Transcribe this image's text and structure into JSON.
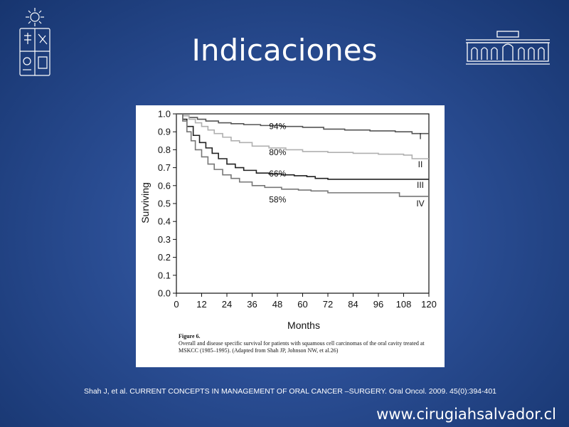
{
  "slide": {
    "title": "Indicaciones",
    "citation": "Shah J, et al. CURRENT CONCEPTS IN MANAGEMENT OF ORAL CANCER –SURGERY. Oral Oncol. 2009. 45(0):394-401",
    "website": "www.cirugiahsalvador.cl"
  },
  "figure": {
    "label": "Figure 6.",
    "caption": "Overall and disease specific survival for patients with squamous cell carcinomas of the oral cavity treated at MSKCC (1985–1995). (Adapted from Shah JP, Johnson NW, et al.26)"
  },
  "colors": {
    "background": "#2a4d93",
    "stage_I": "#555555",
    "stage_II": "#b0b0b0",
    "stage_III": "#222222",
    "stage_IV": "#777777"
  },
  "chart_data": {
    "type": "line",
    "title": "",
    "xlabel": "Months",
    "ylabel": "Surviving",
    "xlim": [
      0,
      120
    ],
    "ylim": [
      0,
      1.0
    ],
    "xticks": [
      "0",
      "12",
      "24",
      "36",
      "48",
      "60",
      "72",
      "84",
      "96",
      "108",
      "120"
    ],
    "yticks": [
      "0.0",
      "0.1",
      "0.2",
      "0.3",
      "0.4",
      "0.5",
      "0.6",
      "0.7",
      "0.8",
      "0.9",
      "1.0"
    ],
    "grid": false,
    "series": [
      {
        "name": "I",
        "annotation": "94%",
        "x": [
          0,
          3,
          6,
          10,
          14,
          20,
          26,
          32,
          40,
          50,
          60,
          70,
          80,
          92,
          104,
          112,
          120
        ],
        "y": [
          1.0,
          0.99,
          0.98,
          0.97,
          0.96,
          0.95,
          0.945,
          0.94,
          0.935,
          0.93,
          0.925,
          0.915,
          0.91,
          0.905,
          0.9,
          0.89,
          0.89
        ]
      },
      {
        "name": "II",
        "annotation": "80%",
        "x": [
          0,
          3,
          6,
          9,
          12,
          15,
          18,
          22,
          26,
          30,
          36,
          44,
          52,
          60,
          72,
          84,
          96,
          108,
          112,
          120
        ],
        "y": [
          1.0,
          0.99,
          0.97,
          0.95,
          0.93,
          0.91,
          0.89,
          0.87,
          0.85,
          0.84,
          0.82,
          0.81,
          0.8,
          0.79,
          0.785,
          0.78,
          0.775,
          0.77,
          0.75,
          0.75
        ]
      },
      {
        "name": "III",
        "annotation": "66%",
        "x": [
          0,
          3,
          5,
          8,
          11,
          14,
          17,
          20,
          24,
          28,
          32,
          38,
          44,
          50,
          56,
          62,
          66,
          72,
          84,
          96,
          108,
          120
        ],
        "y": [
          1.0,
          0.97,
          0.93,
          0.88,
          0.84,
          0.81,
          0.78,
          0.75,
          0.72,
          0.7,
          0.685,
          0.67,
          0.665,
          0.66,
          0.655,
          0.65,
          0.64,
          0.635,
          0.635,
          0.635,
          0.635,
          0.635
        ]
      },
      {
        "name": "IV",
        "annotation": "58%",
        "x": [
          0,
          3,
          5,
          7,
          9,
          12,
          15,
          18,
          22,
          26,
          30,
          36,
          42,
          50,
          58,
          64,
          72,
          84,
          96,
          106,
          120
        ],
        "y": [
          1.0,
          0.96,
          0.9,
          0.85,
          0.8,
          0.76,
          0.72,
          0.69,
          0.66,
          0.64,
          0.62,
          0.6,
          0.59,
          0.58,
          0.575,
          0.57,
          0.56,
          0.56,
          0.56,
          0.54,
          0.54
        ]
      }
    ]
  }
}
